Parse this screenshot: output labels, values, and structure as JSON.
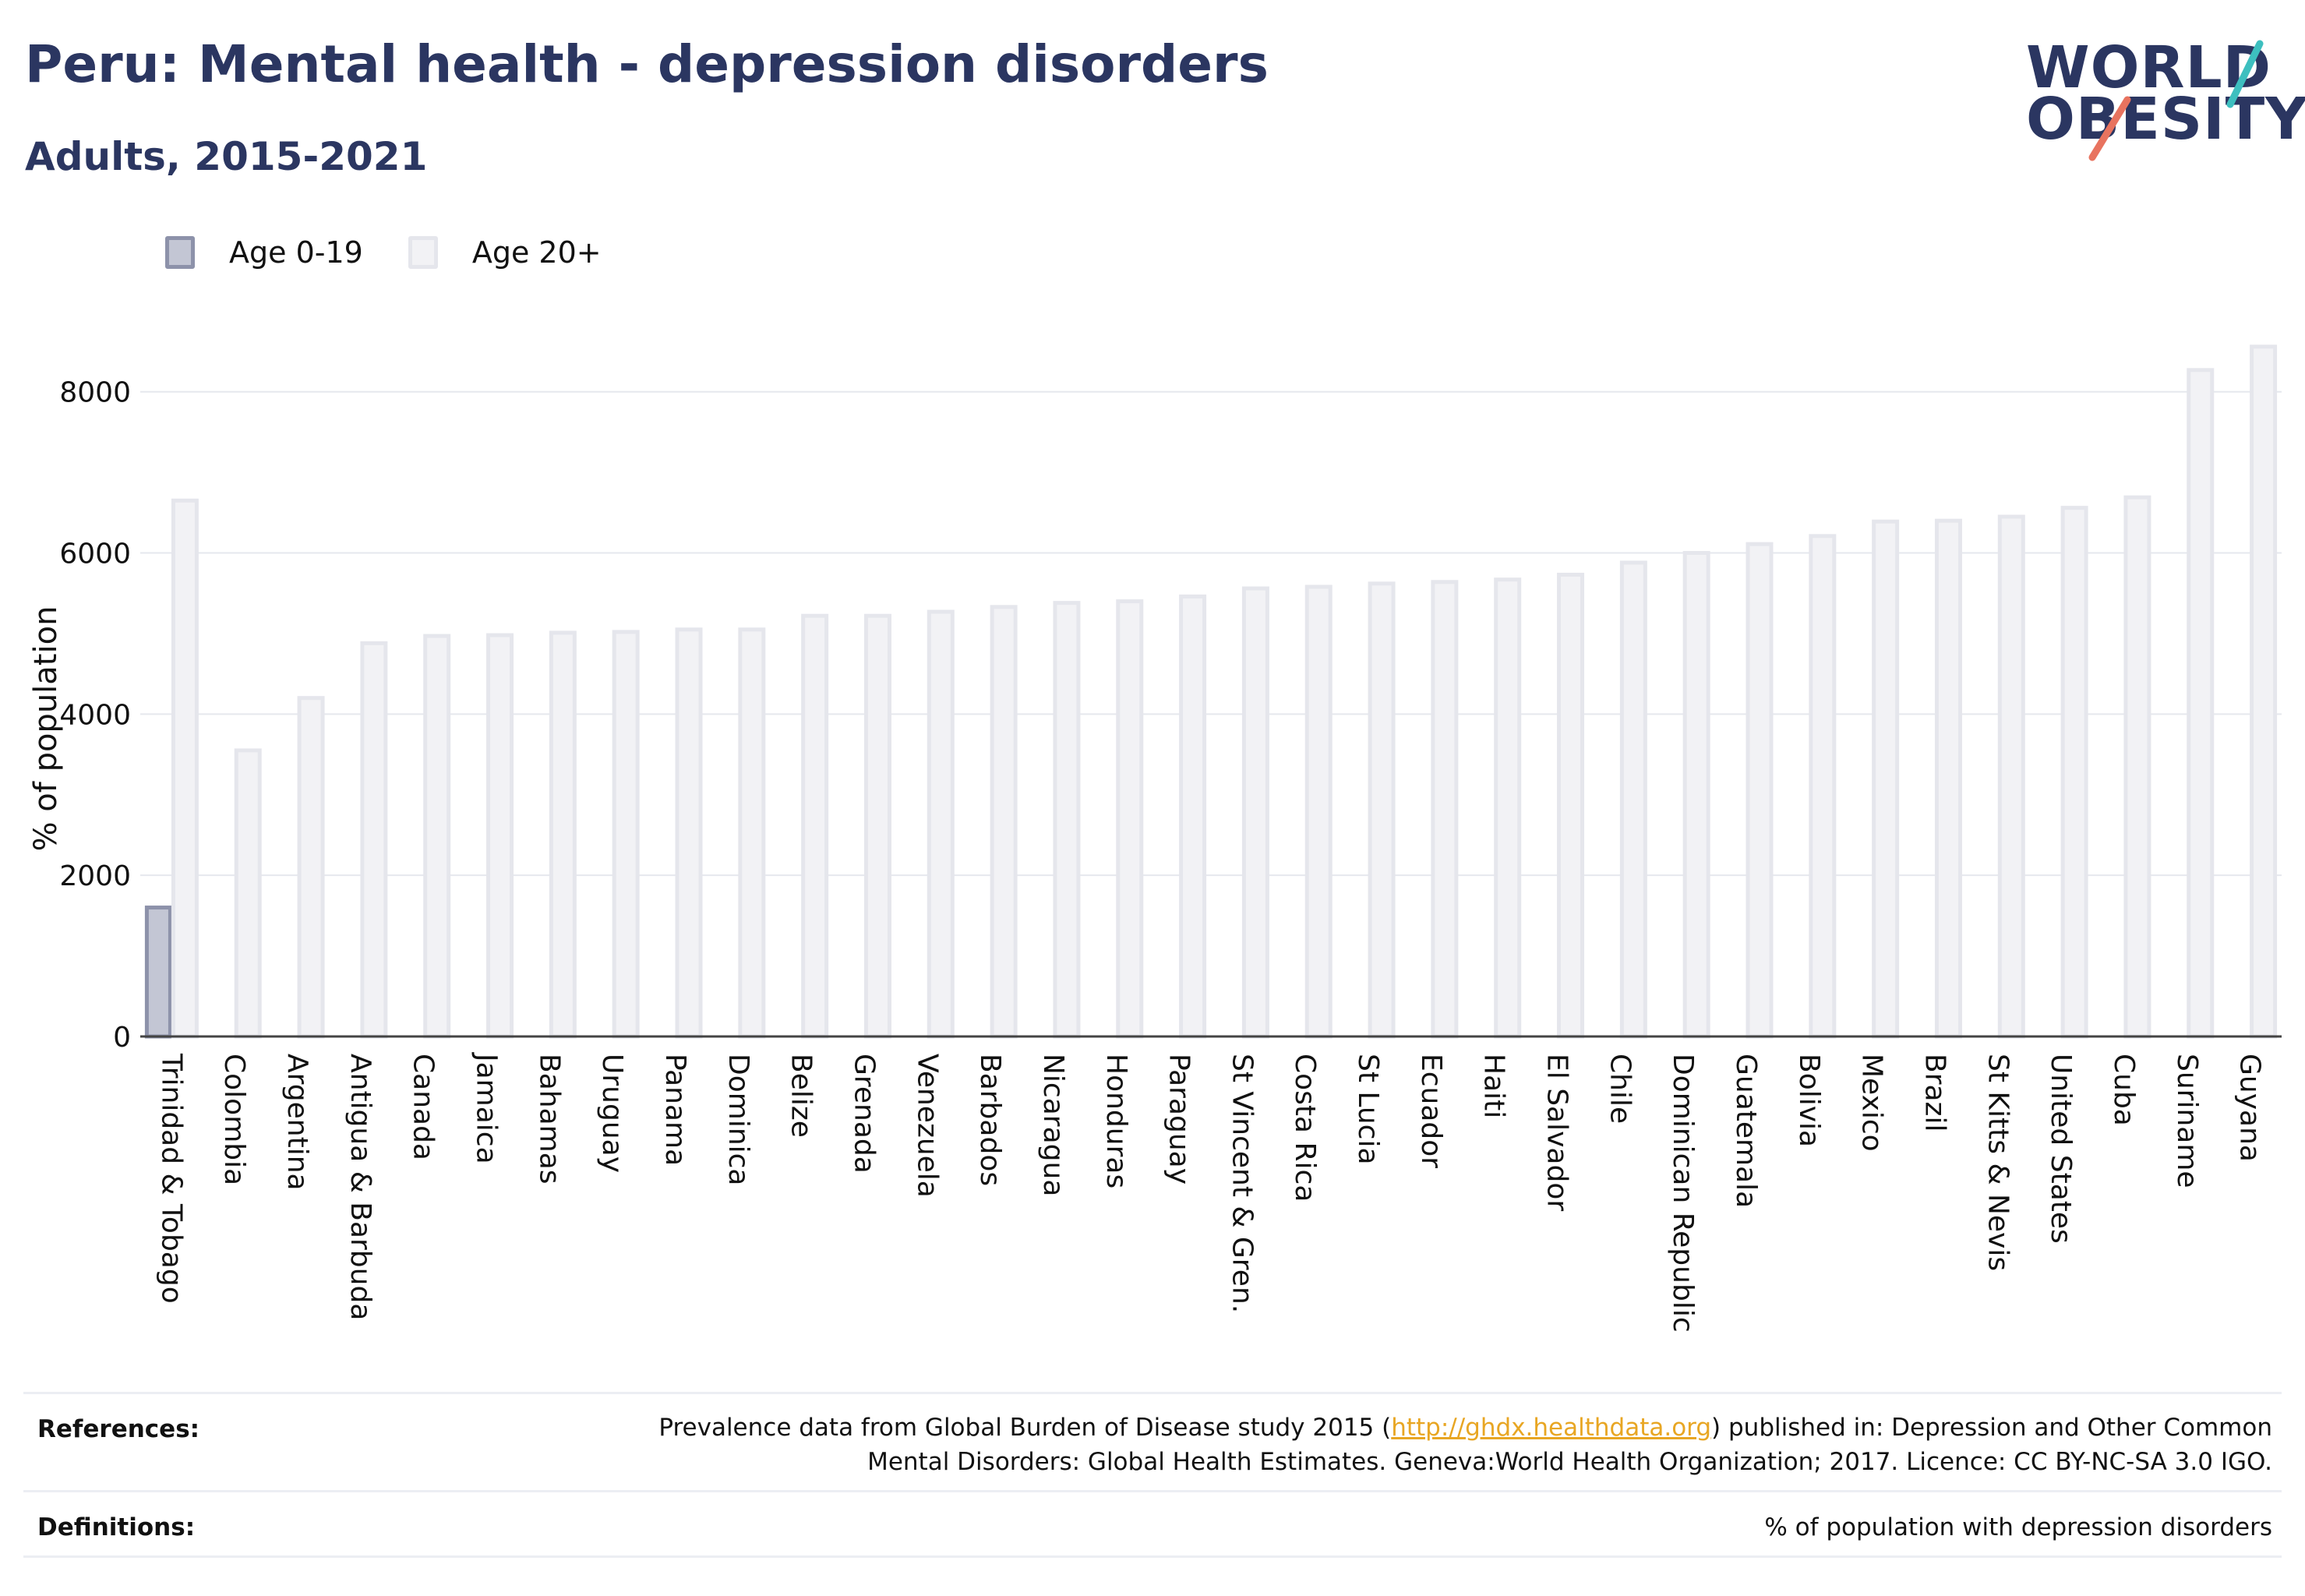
{
  "title": "Peru: Mental health - depression disorders",
  "subtitle": "Adults, 2015-2021",
  "logo": {
    "line1": "WORLD",
    "line2": "OBESITY"
  },
  "colors": {
    "title": "#2b3661",
    "age_0_19_fill": "#c3c6d4",
    "age_0_19_stroke": "#8d92aa",
    "age_20_plus_fill": "#f2f2f5",
    "age_20_plus_stroke": "#e5e6ec",
    "link": "#e8a623",
    "logo_teal": "#3dbfbf",
    "logo_coral": "#e8735f"
  },
  "legend": [
    {
      "label": "Age 0-19"
    },
    {
      "label": "Age 20+"
    }
  ],
  "chart_data": {
    "type": "bar",
    "ylabel": "% of population",
    "xlabel": "",
    "ylim": [
      0,
      8800
    ],
    "yticks": [
      0,
      2000,
      4000,
      6000,
      8000
    ],
    "grid": true,
    "legend_position": "top-left",
    "categories": [
      "Trinidad & Tobago",
      "Colombia",
      "Argentina",
      "Antigua & Barbuda",
      "Canada",
      "Jamaica",
      "Bahamas",
      "Uruguay",
      "Panama",
      "Dominica",
      "Belize",
      "Grenada",
      "Venezuela",
      "Barbados",
      "Nicaragua",
      "Honduras",
      "Paraguay",
      "St Vincent & Gren.",
      "Costa Rica",
      "St Lucia",
      "Ecuador",
      "Haiti",
      "El Salvador",
      "Chile",
      "Dominican Republic",
      "Guatemala",
      "Bolivia",
      "Mexico",
      "Brazil",
      "St Kitts & Nevis",
      "United States",
      "Cuba",
      "Suriname",
      "Guyana"
    ],
    "series": [
      {
        "name": "Age 0-19",
        "values": [
          1600,
          null,
          null,
          null,
          null,
          null,
          null,
          null,
          null,
          null,
          null,
          null,
          null,
          null,
          null,
          null,
          null,
          null,
          null,
          null,
          null,
          null,
          null,
          null,
          null,
          null,
          null,
          null,
          null,
          null,
          null,
          null,
          null,
          null
        ]
      },
      {
        "name": "Age 20+",
        "values": [
          6650,
          3550,
          4200,
          4880,
          4970,
          4980,
          5010,
          5020,
          5050,
          5050,
          5220,
          5220,
          5270,
          5330,
          5380,
          5400,
          5460,
          5560,
          5580,
          5620,
          5640,
          5670,
          5730,
          5880,
          6000,
          6110,
          6210,
          6390,
          6400,
          6450,
          6560,
          6690,
          8270,
          8560
        ]
      }
    ]
  },
  "references": {
    "label": "References:",
    "text_before": "Prevalence data from Global Burden of Disease study 2015 (",
    "link": "http://ghdx.healthdata.org",
    "text_after": ") published in: Depression and Other Common",
    "line2": "Mental Disorders: Global Health Estimates. Geneva:World Health Organization; 2017. Licence: CC BY-NC-SA 3.0 IGO."
  },
  "definitions": {
    "label": "Definitions:",
    "text": "% of population with depression disorders"
  }
}
